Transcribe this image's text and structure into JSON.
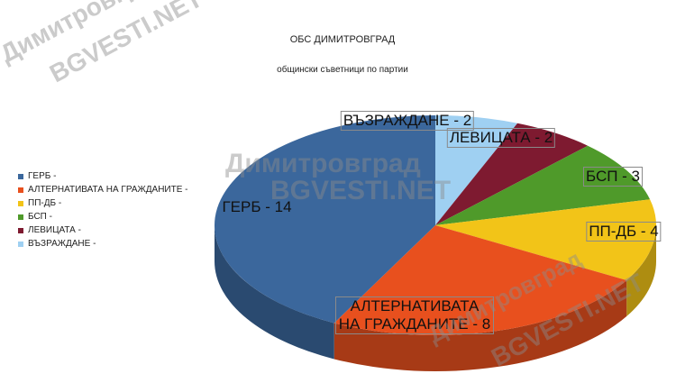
{
  "chart_data": {
    "type": "pie",
    "title": "ОБС ДИМИТРОВГРАД",
    "subtitle": "общински съветници по партии",
    "categories": [
      "ГЕРБ -",
      "АЛТЕРНАТИВАТА НА ГРАЖДАНИТЕ -",
      "ПП-ДБ -",
      "БСП -",
      "ЛЕВИЦАТА -",
      "ВЪЗРАЖДАНЕ -"
    ],
    "values": [
      14,
      8,
      4,
      3,
      2,
      2
    ],
    "value_labels": [
      "ГЕРБ - 14",
      "АЛТЕРНАТИВАТА НА ГРАЖДАНИТЕ - 8",
      "ПП-ДБ - 4",
      "БСП - 3",
      "ЛЕВИЦАТА - 2",
      "ВЪЗРАЖДАНЕ - 2"
    ],
    "colors": [
      "#3b679c",
      "#e8501e",
      "#f2c418",
      "#4f9a2a",
      "#7e1a30",
      "#9fd0f2"
    ],
    "legend": "left",
    "three_d": true
  },
  "watermarks": [
    "Димитровград",
    "BGVESTI.NET"
  ]
}
